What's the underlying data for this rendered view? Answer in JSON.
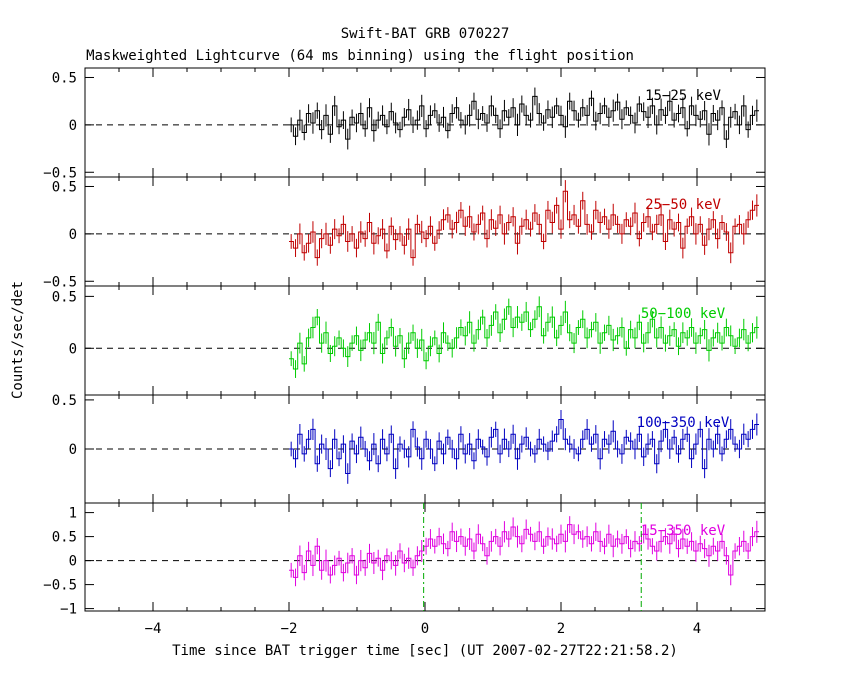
{
  "title": "Swift-BAT GRB 070227",
  "subtitle": "Maskweighted Lightcurve (64 ms binning) using the flight position",
  "chart_data": {
    "type": "line",
    "title": "Swift-BAT GRB 070227",
    "subtitle": "Maskweighted Lightcurve (64 ms binning) using the flight position",
    "xlabel": "Time since BAT trigger time [sec] (UT 2007-02-27T22:21:58.2)",
    "ylabel": "Counts/sec/det",
    "xlim": [
      -5,
      5
    ],
    "x_ticks": [
      -4,
      -2,
      0,
      2,
      4
    ],
    "x_tick_labels": [
      "−4",
      "−2",
      "0",
      "2",
      "4"
    ],
    "bin_width": 0.064,
    "data_start": -2.0,
    "data_end": 5.0,
    "markers": [
      {
        "x": -0.02,
        "panel": 4
      },
      {
        "x": 3.18,
        "panel": 4
      }
    ],
    "panels": [
      {
        "name": "15-25 keV",
        "label": "15−25 keV",
        "color": "#000000",
        "ylim": [
          -0.55,
          0.6
        ],
        "yticks": [
          -0.5,
          0,
          0.5
        ],
        "ytick_labels": [
          "−0.5",
          "0",
          "0.5"
        ],
        "values": [
          0.0,
          -0.12,
          0.05,
          -0.08,
          0.12,
          0.02,
          0.15,
          -0.05,
          0.1,
          -0.1,
          0.2,
          -0.02,
          0.05,
          -0.15,
          0.08,
          0.02,
          0.12,
          -0.04,
          0.18,
          -0.06,
          0.05,
          0.1,
          -0.02,
          0.14,
          0.02,
          -0.05,
          0.08,
          0.16,
          0.0,
          0.05,
          0.2,
          -0.04,
          0.1,
          0.15,
          0.02,
          0.08,
          -0.06,
          0.12,
          0.18,
          0.05,
          0.0,
          0.1,
          0.25,
          0.06,
          0.12,
          0.02,
          0.2,
          0.1,
          -0.04,
          0.15,
          0.08,
          0.18,
          0.0,
          0.22,
          0.1,
          0.05,
          0.3,
          0.12,
          0.02,
          0.16,
          0.08,
          0.2,
          0.1,
          -0.02,
          0.25,
          0.15,
          0.05,
          0.18,
          0.1,
          0.28,
          0.04,
          0.12,
          0.2,
          0.08,
          0.15,
          0.24,
          0.06,
          0.18,
          0.1,
          0.02,
          0.22,
          0.14,
          0.08,
          0.2,
          0.0,
          0.16,
          0.1,
          0.25,
          0.05,
          0.12,
          0.18,
          -0.04,
          0.2,
          0.1,
          0.06,
          0.15,
          -0.1,
          0.12,
          0.05,
          0.18,
          -0.15,
          0.08,
          0.14,
          0.0,
          0.2,
          -0.05,
          0.1,
          0.15
        ]
      },
      {
        "name": "25-50 keV",
        "label": "25−50 keV",
        "color": "#c00000",
        "ylim": [
          -0.55,
          0.6
        ],
        "yticks": [
          -0.5,
          0,
          0.5
        ],
        "ytick_labels": [
          "−0.5",
          "0",
          "0.5"
        ],
        "values": [
          -0.08,
          -0.15,
          0.0,
          -0.2,
          -0.1,
          0.02,
          -0.25,
          -0.05,
          0.0,
          -0.12,
          0.05,
          -0.02,
          0.1,
          -0.08,
          0.0,
          -0.15,
          0.02,
          -0.05,
          0.12,
          -0.1,
          -0.02,
          0.05,
          -0.18,
          0.08,
          -0.06,
          0.0,
          -0.12,
          0.05,
          -0.25,
          0.1,
          0.02,
          -0.05,
          0.08,
          -0.1,
          0.04,
          0.15,
          0.2,
          0.05,
          0.12,
          0.25,
          0.08,
          0.18,
          0.02,
          0.1,
          0.22,
          -0.05,
          0.15,
          0.06,
          0.2,
          0.0,
          0.12,
          0.18,
          -0.1,
          0.08,
          0.15,
          0.05,
          0.22,
          0.1,
          -0.08,
          0.25,
          0.12,
          0.3,
          0.05,
          0.45,
          0.15,
          0.2,
          0.08,
          0.35,
          0.1,
          0.02,
          0.25,
          0.12,
          0.18,
          0.05,
          0.2,
          0.1,
          0.0,
          0.15,
          0.08,
          0.22,
          -0.05,
          0.12,
          0.18,
          0.02,
          0.1,
          0.2,
          -0.08,
          0.15,
          0.05,
          0.12,
          -0.15,
          0.08,
          0.18,
          0.0,
          0.1,
          -0.12,
          0.05,
          0.15,
          -0.05,
          0.12,
          0.02,
          -0.2,
          0.08,
          0.1,
          0.0,
          0.15,
          0.25,
          0.3
        ]
      },
      {
        "name": "50-100 keV",
        "label": "50−100 keV",
        "color": "#00cc00",
        "ylim": [
          -0.45,
          0.6
        ],
        "yticks": [
          0,
          0.5
        ],
        "ytick_labels": [
          "0",
          "0.5"
        ],
        "values": [
          -0.1,
          -0.2,
          0.05,
          -0.15,
          0.1,
          0.2,
          0.3,
          0.05,
          0.15,
          -0.05,
          0.02,
          0.1,
          0.0,
          -0.08,
          0.05,
          0.12,
          -0.02,
          0.08,
          0.15,
          0.05,
          0.25,
          -0.05,
          0.1,
          0.2,
          0.02,
          0.12,
          -0.1,
          0.05,
          0.15,
          0.0,
          0.08,
          -0.12,
          0.02,
          0.1,
          -0.05,
          0.15,
          0.05,
          0.0,
          0.1,
          0.2,
          0.12,
          0.25,
          0.05,
          0.18,
          0.3,
          0.1,
          0.22,
          0.35,
          0.15,
          0.28,
          0.4,
          0.2,
          0.3,
          0.25,
          0.35,
          0.18,
          0.28,
          0.4,
          0.12,
          0.25,
          0.3,
          0.1,
          0.22,
          0.35,
          0.15,
          0.05,
          0.2,
          0.28,
          0.1,
          0.18,
          0.25,
          0.05,
          0.15,
          0.22,
          0.08,
          0.12,
          0.2,
          0.0,
          0.18,
          0.1,
          0.25,
          0.05,
          0.15,
          0.28,
          0.1,
          0.2,
          0.05,
          0.12,
          0.18,
          0.02,
          0.15,
          0.1,
          0.2,
          0.05,
          0.12,
          0.18,
          -0.02,
          0.1,
          0.15,
          0.05,
          0.2,
          0.12,
          0.02,
          0.1,
          0.18,
          0.05,
          0.15,
          0.2
        ]
      },
      {
        "name": "100-350 keV",
        "label": "100−350 keV",
        "color": "#0000c0",
        "ylim": [
          -0.55,
          0.55
        ],
        "yticks": [
          0,
          0.5
        ],
        "ytick_labels": [
          "0",
          "0.5"
        ],
        "values": [
          0.0,
          -0.1,
          0.15,
          -0.05,
          0.1,
          0.2,
          -0.15,
          0.05,
          0.0,
          -0.2,
          0.1,
          -0.1,
          0.05,
          -0.25,
          0.08,
          -0.05,
          0.12,
          0.0,
          -0.12,
          0.05,
          -0.15,
          0.1,
          -0.05,
          0.15,
          -0.2,
          0.05,
          0.0,
          -0.08,
          0.2,
          0.02,
          -0.1,
          0.1,
          0.0,
          -0.15,
          0.08,
          -0.05,
          0.12,
          0.0,
          -0.1,
          0.15,
          -0.05,
          0.05,
          -0.12,
          0.1,
          0.02,
          -0.08,
          0.12,
          0.2,
          -0.05,
          0.1,
          0.0,
          0.15,
          -0.1,
          0.05,
          0.12,
          0.0,
          -0.05,
          0.1,
          0.05,
          -0.02,
          0.08,
          0.15,
          0.3,
          0.1,
          0.05,
          0.0,
          -0.05,
          0.1,
          0.2,
          0.05,
          0.15,
          -0.1,
          0.1,
          0.05,
          0.18,
          0.0,
          -0.05,
          0.12,
          0.08,
          0.0,
          0.15,
          -0.08,
          0.05,
          0.1,
          -0.15,
          0.08,
          0.2,
          0.0,
          0.12,
          -0.05,
          0.1,
          0.15,
          -0.1,
          0.05,
          0.2,
          -0.2,
          0.1,
          0.0,
          0.15,
          -0.05,
          0.1,
          0.2,
          0.05,
          0.0,
          0.15,
          0.1,
          0.2,
          0.25
        ]
      },
      {
        "name": "15-350 keV",
        "label": "15−350 keV",
        "color": "#e000e0",
        "ylim": [
          -1.05,
          1.2
        ],
        "yticks": [
          -1,
          -0.5,
          0,
          0.5,
          1
        ],
        "ytick_labels": [
          "−1",
          "−0.5",
          "0",
          "0.5",
          "1"
        ],
        "values": [
          -0.2,
          -0.35,
          0.1,
          -0.25,
          0.2,
          -0.1,
          0.3,
          -0.2,
          0.0,
          -0.3,
          -0.1,
          0.05,
          -0.25,
          -0.05,
          0.1,
          -0.3,
          0.0,
          -0.15,
          0.15,
          -0.05,
          0.05,
          -0.2,
          0.1,
          0.0,
          -0.1,
          0.2,
          -0.05,
          0.05,
          -0.15,
          0.1,
          0.2,
          0.3,
          0.45,
          0.3,
          0.5,
          0.35,
          0.25,
          0.6,
          0.4,
          0.5,
          0.3,
          0.45,
          0.2,
          0.55,
          0.35,
          0.1,
          0.4,
          0.5,
          0.3,
          0.6,
          0.45,
          0.7,
          0.5,
          0.35,
          0.65,
          0.55,
          0.4,
          0.6,
          0.3,
          0.5,
          0.45,
          0.35,
          0.55,
          0.4,
          0.75,
          0.55,
          0.6,
          0.45,
          0.5,
          0.35,
          0.6,
          0.4,
          0.3,
          0.55,
          0.3,
          0.45,
          0.35,
          0.5,
          0.25,
          0.4,
          0.35,
          0.55,
          0.45,
          0.3,
          0.2,
          0.4,
          0.5,
          0.35,
          0.55,
          0.25,
          0.45,
          0.3,
          0.4,
          0.2,
          0.35,
          0.25,
          0.1,
          0.3,
          0.2,
          0.4,
          0.1,
          -0.3,
          0.2,
          0.3,
          0.4,
          0.2,
          0.5,
          0.6
        ]
      }
    ]
  }
}
